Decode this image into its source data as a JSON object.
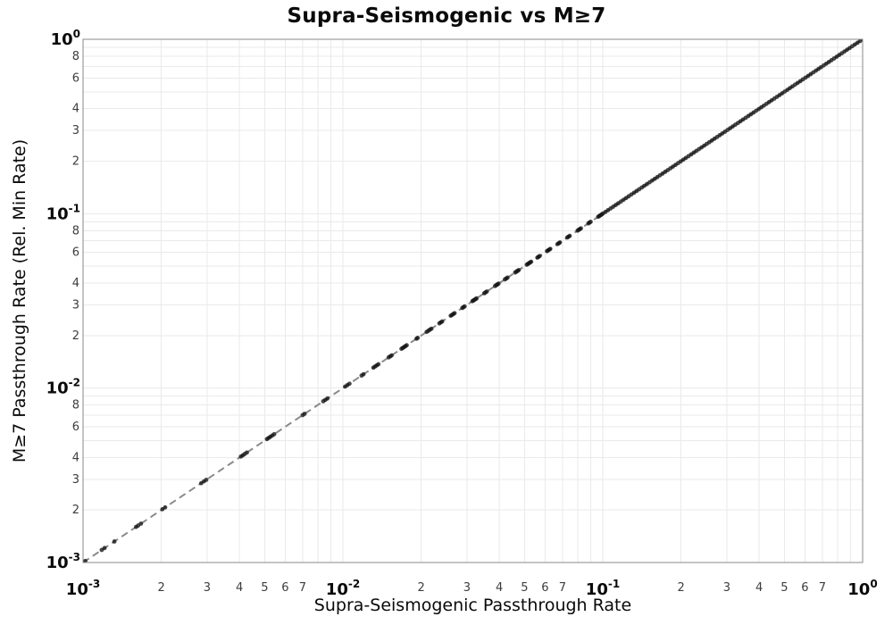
{
  "chart_data": {
    "type": "scatter",
    "title": "Supra-Seismogenic vs M≥7",
    "xlabel": "Supra-Seismogenic Passthrough Rate",
    "ylabel": "M≥7 Passthrough Rate (Rel. Min Rate)",
    "xscale": "log",
    "yscale": "log",
    "xlim": [
      0.001,
      1
    ],
    "ylim": [
      0.001,
      1
    ],
    "grid": true,
    "grid_color": "#eaeaea",
    "spine_color": "#8a8a8a",
    "background": "#ffffff",
    "x_decade_exponents": [
      -3,
      -2,
      -1,
      0
    ],
    "y_decade_exponents": [
      0,
      -1,
      -2,
      -3
    ],
    "x_minor_labels": [
      2,
      3,
      4,
      5,
      6,
      7
    ],
    "y_minor_labels": [
      8,
      6,
      4,
      3,
      2
    ],
    "decade_label_color": "#0a0a0a",
    "minor_label_color": "#3d3d3d",
    "identity_line": {
      "show": true,
      "relation": "y = x",
      "color": "#8a8a8a",
      "width": 2,
      "dash": [
        8,
        5
      ]
    },
    "marker": {
      "color": "#141414",
      "radius": 2.4,
      "opacity": 0.78
    },
    "points": {
      "y_equals_x": true,
      "x": [
        0.00102,
        0.00118,
        0.00121,
        0.00132,
        0.0016,
        0.00163,
        0.00167,
        0.00202,
        0.00207,
        0.00285,
        0.00292,
        0.00298,
        0.00405,
        0.00412,
        0.00419,
        0.00427,
        0.0051,
        0.00518,
        0.00526,
        0.00535,
        0.00544,
        0.007,
        0.00712,
        0.0084,
        0.00856,
        0.00872,
        0.0102,
        0.0104,
        0.0106,
        0.0118,
        0.012,
        0.0131,
        0.0133,
        0.0135,
        0.0137,
        0.015,
        0.0152,
        0.0154,
        0.0168,
        0.017,
        0.0172,
        0.0174,
        0.0176,
        0.0192,
        0.0194,
        0.021,
        0.0213,
        0.0216,
        0.0219,
        0.0235,
        0.0238,
        0.0241,
        0.026,
        0.0263,
        0.0266,
        0.0269,
        0.0288,
        0.0291,
        0.0294,
        0.0315,
        0.0318,
        0.0321,
        0.0324,
        0.0327,
        0.035,
        0.0354,
        0.0358,
        0.0385,
        0.0389,
        0.0393,
        0.0397,
        0.042,
        0.0425,
        0.043,
        0.046,
        0.0465,
        0.047,
        0.0475,
        0.051,
        0.0515,
        0.052,
        0.0525,
        0.053,
        0.056,
        0.0566,
        0.0572,
        0.061,
        0.0616,
        0.0622,
        0.0628,
        0.067,
        0.0677,
        0.0684,
        0.073,
        0.0738,
        0.0746,
        0.08,
        0.0808,
        0.0816,
        0.0824,
        0.088,
        0.0889,
        0.0898,
        0.096,
        0.097,
        0.098,
        0.099,
        0.1,
        0.1023,
        0.1047,
        0.1072,
        0.1096,
        0.1122,
        0.1148,
        0.1175,
        0.1202,
        0.123,
        0.1259,
        0.1288,
        0.1318,
        0.1349,
        0.138,
        0.1413,
        0.1445,
        0.1479,
        0.1514,
        0.1549,
        0.1585,
        0.1622,
        0.166,
        0.1698,
        0.1738,
        0.1778,
        0.182,
        0.1862,
        0.1905,
        0.195,
        0.1995,
        0.2042,
        0.2089,
        0.2138,
        0.2188,
        0.2239,
        0.2291,
        0.2344,
        0.2399,
        0.2455,
        0.2512,
        0.257,
        0.263,
        0.2692,
        0.2754,
        0.2818,
        0.2884,
        0.2951,
        0.302,
        0.309,
        0.3162,
        0.3236,
        0.3311,
        0.3388,
        0.3467,
        0.3548,
        0.3631,
        0.3715,
        0.3802,
        0.389,
        0.3981,
        0.4074,
        0.4169,
        0.4266,
        0.4365,
        0.4467,
        0.4571,
        0.4677,
        0.4786,
        0.4898,
        0.5012,
        0.5129,
        0.5248,
        0.537,
        0.5495,
        0.5623,
        0.5754,
        0.5888,
        0.6026,
        0.6166,
        0.631,
        0.6457,
        0.6607,
        0.6761,
        0.6918,
        0.7079,
        0.7244,
        0.7413,
        0.7586,
        0.7762,
        0.7943,
        0.8128,
        0.8318,
        0.8511,
        0.871,
        0.8913,
        0.912,
        0.9333,
        0.955,
        0.9772,
        1.0
      ]
    }
  }
}
